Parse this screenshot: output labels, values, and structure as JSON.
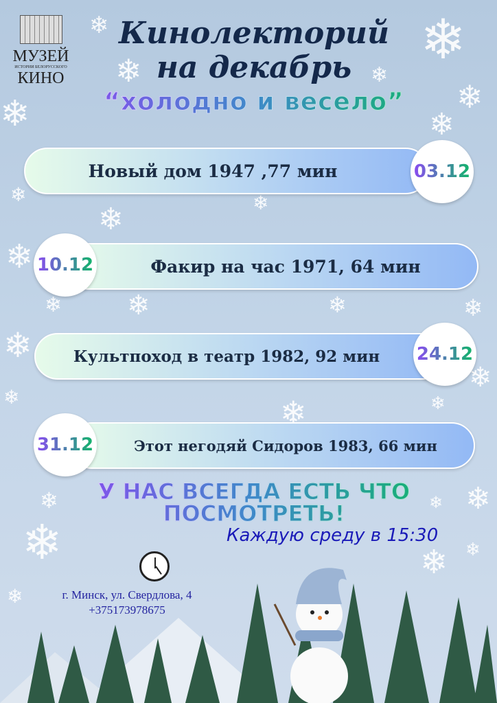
{
  "logo": {
    "line1": "МУЗЕЙ",
    "line2": "ИСТОРИИ БЕЛОРУССКОГО",
    "line3": "КИНО"
  },
  "title": {
    "line1": "Кинолекторий",
    "line2": "на декабрь"
  },
  "subtitle": "“холодно и весело”",
  "events": [
    {
      "date": "03.12",
      "title": "Новый дом 1947 ,77 мин"
    },
    {
      "date": "10.12",
      "title": "Факир на час 1971, 64 мин"
    },
    {
      "date": "24.12",
      "title": "Культпоход в театр 1982, 92 мин"
    },
    {
      "date": "31.12",
      "title": "Этот негодяй Сидоров 1983, 66 мин"
    }
  ],
  "slogan": {
    "line1": "У НАС ВСЕГДА ЕСТЬ ЧТО",
    "line2": "ПОСМОТРЕТЬ!"
  },
  "schedule": "Каждую среду в 15:30",
  "address": "г. Минск, ул. Свердлова, 4",
  "phone": "+375173978675",
  "colors": {
    "title": "#14284a",
    "gradient_start": "#8a4cf0",
    "gradient_end": "#11b56a",
    "schedule": "#1a1ab8"
  }
}
